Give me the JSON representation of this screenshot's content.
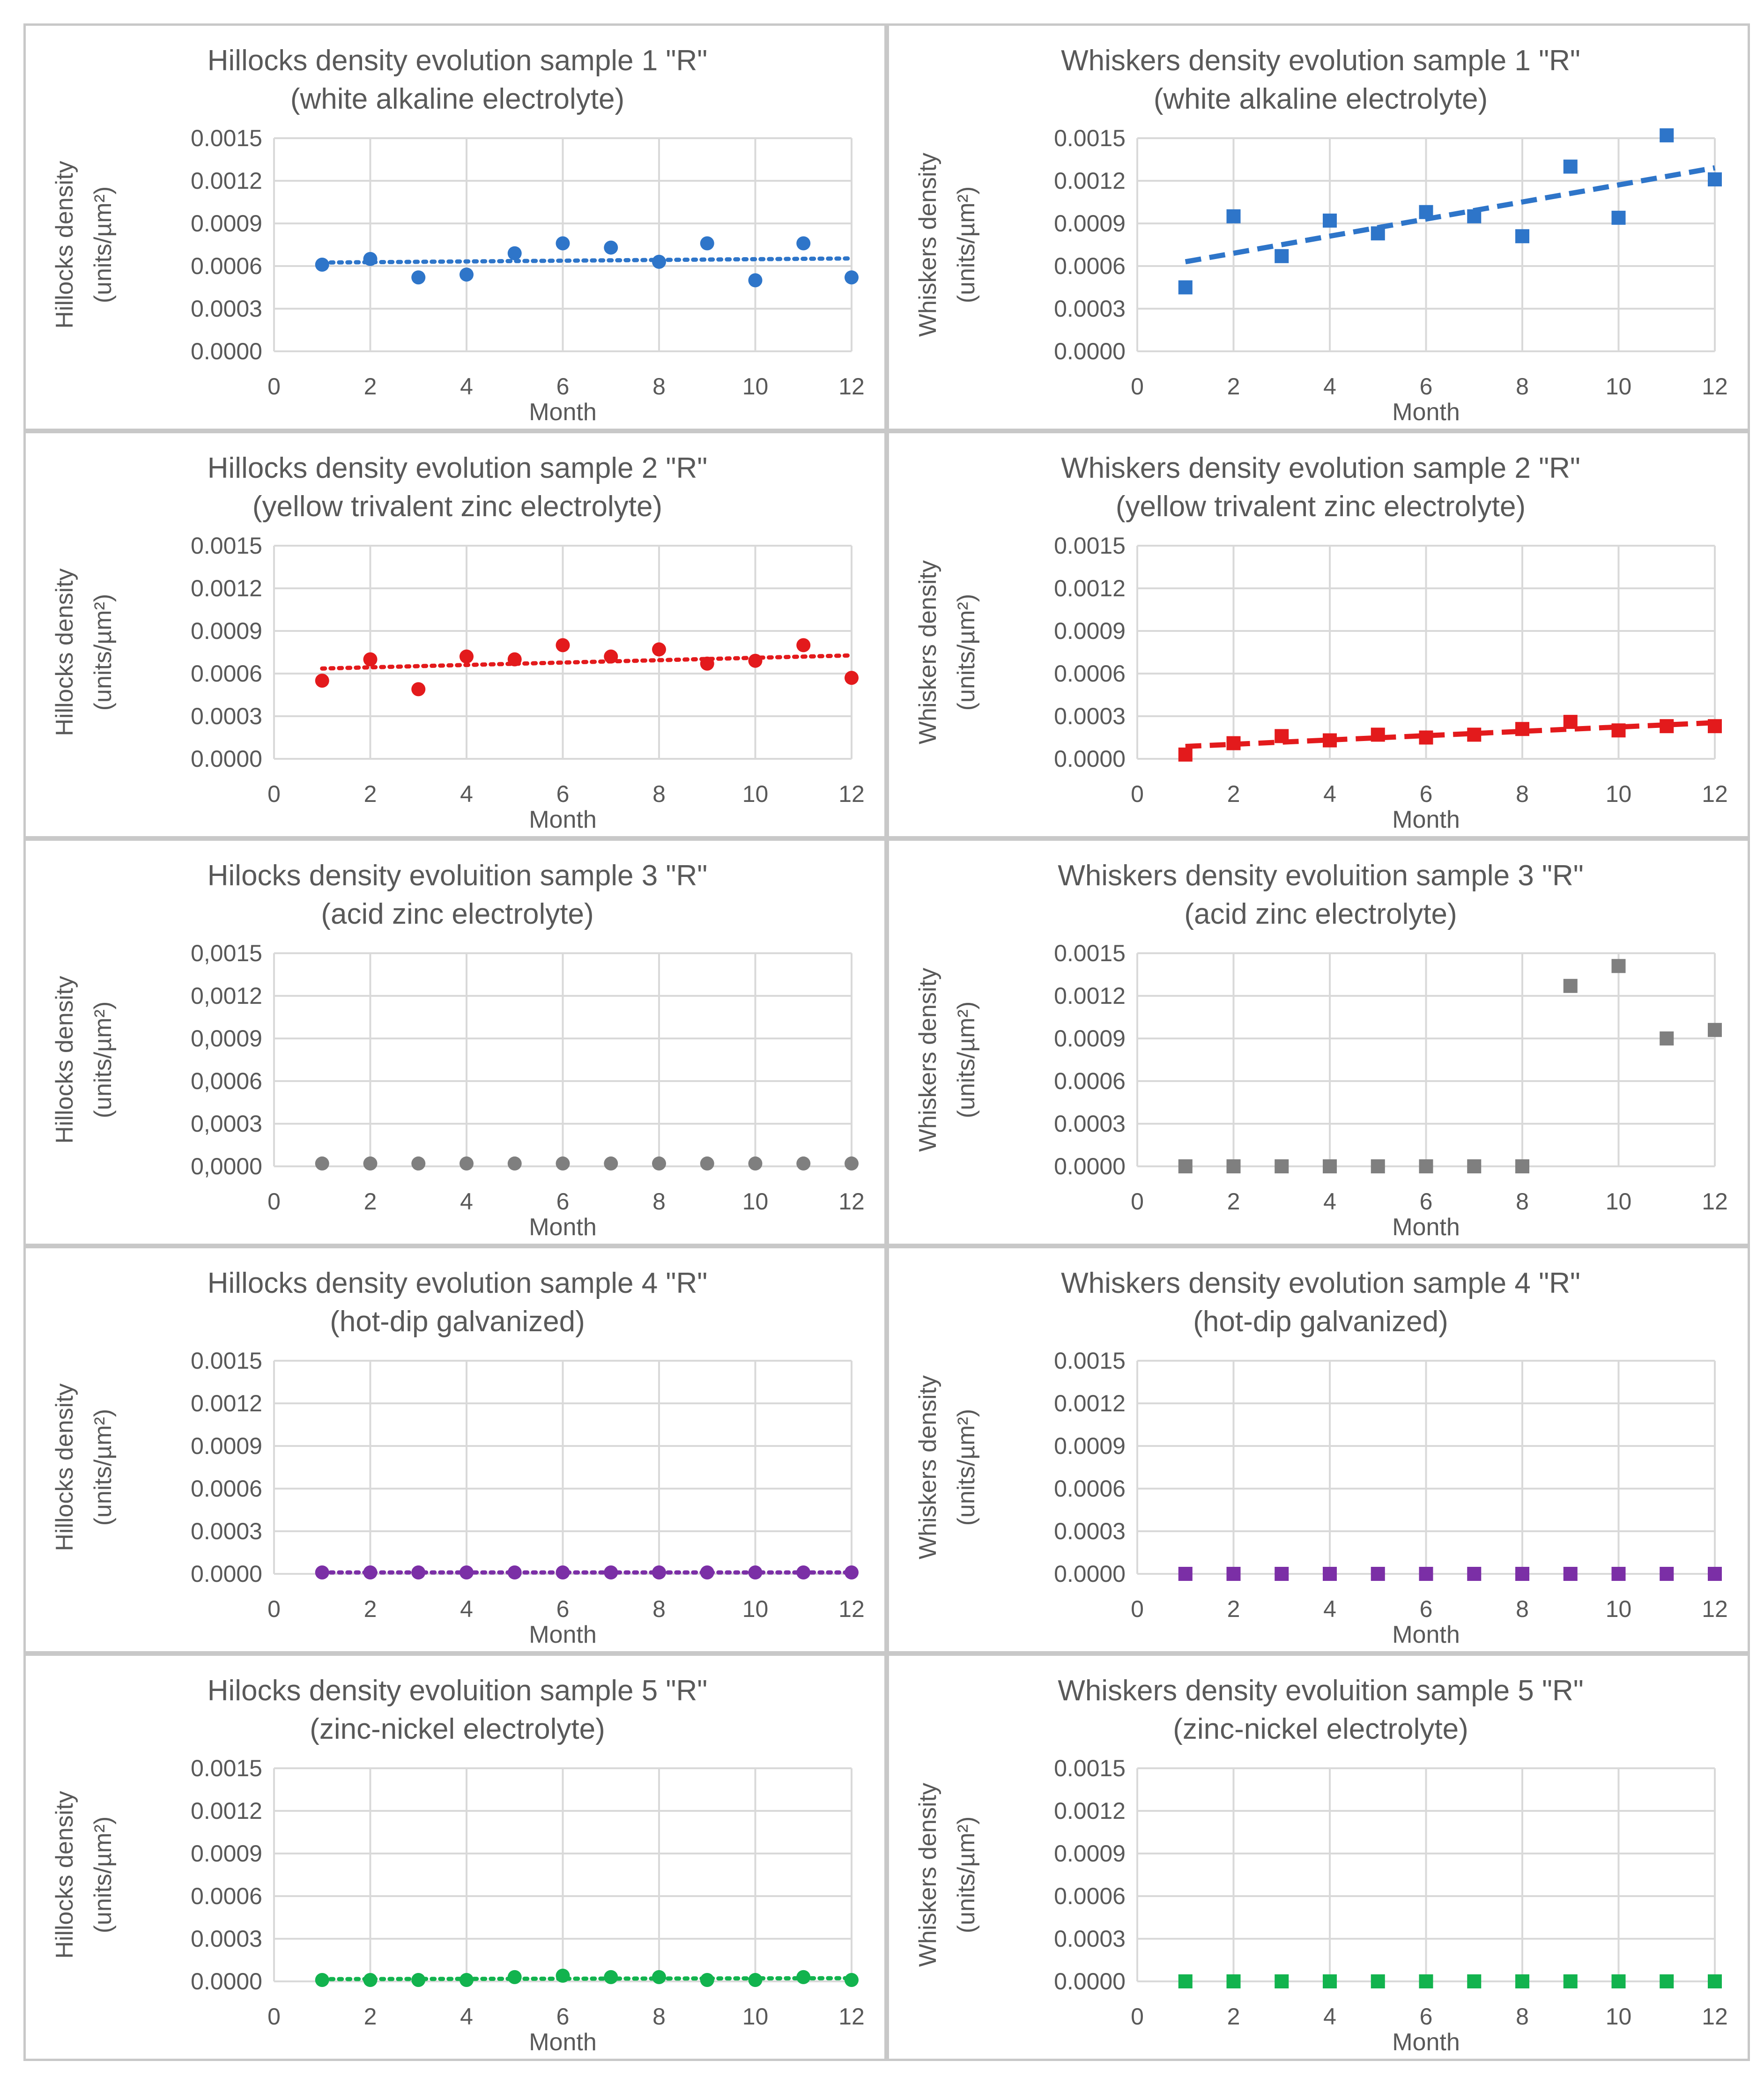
{
  "figure": {
    "unit_label": "(units/µm²)",
    "colors": {
      "sample1": "#2e75c9",
      "sample2": "#e31a1c",
      "sample3": "#7f7f7f",
      "sample4": "#7b2fa6",
      "sample5": "#12b34e",
      "grid": "#d9d9d9",
      "text": "#595959"
    }
  },
  "chart_data": [
    {
      "type": "scatter",
      "title_lines": [
        "Hillocks density evolution sample 1 \"R\"",
        "(white alkaline electrolyte)"
      ],
      "xlabel": "Month",
      "ylabel_lines": [
        "Hillocks density",
        "(units/µm²)"
      ],
      "xlim": [
        0,
        12
      ],
      "ylim": [
        0,
        0.0015
      ],
      "xticks": [
        "0",
        "2",
        "4",
        "6",
        "8",
        "10",
        "12"
      ],
      "yticks": [
        "0.0000",
        "0.0003",
        "0.0006",
        "0.0009",
        "0.0012",
        "0.0015"
      ],
      "marker": "circle",
      "trendline": "dotted",
      "color": "#2e75c9",
      "x": [
        1,
        2,
        3,
        4,
        5,
        6,
        7,
        8,
        9,
        10,
        11,
        12
      ],
      "y": [
        0.00061,
        0.00065,
        0.00052,
        0.00054,
        0.00069,
        0.00076,
        0.00073,
        0.00063,
        0.00076,
        0.0005,
        0.00076,
        0.00052
      ]
    },
    {
      "type": "scatter",
      "title_lines": [
        "Whiskers density evolution sample 1 \"R\"",
        "(white alkaline electrolyte)"
      ],
      "xlabel": "Month",
      "ylabel_lines": [
        "Whiskers density",
        "(units/µm²)"
      ],
      "xlim": [
        0,
        12
      ],
      "ylim": [
        0,
        0.0015
      ],
      "xticks": [
        "0",
        "2",
        "4",
        "6",
        "8",
        "10",
        "12"
      ],
      "yticks": [
        "0.0000",
        "0.0003",
        "0.0006",
        "0.0009",
        "0.0012",
        "0.0015"
      ],
      "marker": "square",
      "trendline": "dashed",
      "color": "#2e75c9",
      "x": [
        1,
        2,
        3,
        4,
        5,
        6,
        7,
        8,
        9,
        10,
        11,
        12
      ],
      "y": [
        0.00045,
        0.00095,
        0.00067,
        0.00092,
        0.00083,
        0.00098,
        0.00095,
        0.00081,
        0.0013,
        0.00094,
        0.00152,
        0.00121
      ]
    },
    {
      "type": "scatter",
      "title_lines": [
        "Hillocks density evolution sample 2 \"R\"",
        "(yellow trivalent zinc electrolyte)"
      ],
      "xlabel": "Month",
      "ylabel_lines": [
        "Hillocks density",
        "(units/µm²)"
      ],
      "xlim": [
        0,
        12
      ],
      "ylim": [
        0,
        0.0015
      ],
      "xticks": [
        "0",
        "2",
        "4",
        "6",
        "8",
        "10",
        "12"
      ],
      "yticks": [
        "0.0000",
        "0.0003",
        "0.0006",
        "0.0009",
        "0.0012",
        "0.0015"
      ],
      "marker": "circle",
      "trendline": "dotted",
      "color": "#e31a1c",
      "x": [
        1,
        2,
        3,
        4,
        5,
        6,
        7,
        8,
        9,
        10,
        11,
        12
      ],
      "y": [
        0.00055,
        0.0007,
        0.00049,
        0.00072,
        0.0007,
        0.0008,
        0.00072,
        0.00077,
        0.00067,
        0.00069,
        0.0008,
        0.00057
      ]
    },
    {
      "type": "scatter",
      "title_lines": [
        "Whiskers density evolution sample 2 \"R\"",
        "(yellow trivalent zinc electrolyte)"
      ],
      "xlabel": "Month",
      "ylabel_lines": [
        "Whiskers density",
        "(units/µm²)"
      ],
      "xlim": [
        0,
        12
      ],
      "ylim": [
        0,
        0.0015
      ],
      "xticks": [
        "0",
        "2",
        "4",
        "6",
        "8",
        "10",
        "12"
      ],
      "yticks": [
        "0.0000",
        "0.0003",
        "0.0006",
        "0.0009",
        "0.0012",
        "0.0015"
      ],
      "marker": "square",
      "trendline": "dashed",
      "color": "#e31a1c",
      "x": [
        1,
        2,
        3,
        4,
        5,
        6,
        7,
        8,
        9,
        10,
        11,
        12
      ],
      "y": [
        3e-05,
        0.00011,
        0.00016,
        0.00013,
        0.00017,
        0.00015,
        0.00017,
        0.00021,
        0.00026,
        0.0002,
        0.00023,
        0.00023
      ]
    },
    {
      "type": "scatter",
      "title_lines": [
        "Hilocks density evoluition sample 3 \"R\"",
        "(acid zinc electrolyte)"
      ],
      "xlabel": "Month",
      "ylabel_lines": [
        "Hillocks density",
        "(units/µm²)"
      ],
      "xlim": [
        0,
        12
      ],
      "ylim": [
        0,
        0.0015
      ],
      "xticks": [
        "0",
        "2",
        "4",
        "6",
        "8",
        "10",
        "12"
      ],
      "yticks": [
        "0,0000",
        "0,0003",
        "0,0006",
        "0,0009",
        "0,0012",
        "0,0015"
      ],
      "marker": "circle",
      "trendline": "none",
      "color": "#7f7f7f",
      "x": [
        1,
        2,
        3,
        4,
        5,
        6,
        7,
        8,
        9,
        10,
        11,
        12
      ],
      "y": [
        2e-05,
        2e-05,
        2e-05,
        2e-05,
        2e-05,
        2e-05,
        2e-05,
        2e-05,
        2e-05,
        2e-05,
        2e-05,
        2e-05
      ]
    },
    {
      "type": "scatter",
      "title_lines": [
        "Whiskers density evoluition sample 3 \"R\"",
        "(acid zinc electrolyte)"
      ],
      "xlabel": "Month",
      "ylabel_lines": [
        "Whiskers density",
        "(units/µm²)"
      ],
      "xlim": [
        0,
        12
      ],
      "ylim": [
        0,
        0.0015
      ],
      "xticks": [
        "0",
        "2",
        "4",
        "6",
        "8",
        "10",
        "12"
      ],
      "yticks": [
        "0.0000",
        "0.0003",
        "0.0006",
        "0.0009",
        "0.0012",
        "0.0015"
      ],
      "marker": "square",
      "trendline": "none",
      "color": "#7f7f7f",
      "x": [
        1,
        2,
        3,
        4,
        5,
        6,
        7,
        8,
        9,
        10,
        11,
        12
      ],
      "y": [
        0,
        0,
        0,
        0,
        0,
        0,
        0,
        0,
        0.00127,
        0.00141,
        0.0009,
        0.00096
      ]
    },
    {
      "type": "scatter",
      "title_lines": [
        "Hillocks density evolution sample 4 \"R\"",
        "(hot-dip galvanized)"
      ],
      "xlabel": "Month",
      "ylabel_lines": [
        "Hillocks density",
        "(units/µm²)"
      ],
      "xlim": [
        0,
        12
      ],
      "ylim": [
        0,
        0.0015
      ],
      "xticks": [
        "0",
        "2",
        "4",
        "6",
        "8",
        "10",
        "12"
      ],
      "yticks": [
        "0.0000",
        "0.0003",
        "0.0006",
        "0.0009",
        "0.0012",
        "0.0015"
      ],
      "marker": "circle",
      "trendline": "dotted",
      "color": "#7b2fa6",
      "x": [
        1,
        2,
        3,
        4,
        5,
        6,
        7,
        8,
        9,
        10,
        11,
        12
      ],
      "y": [
        1e-05,
        1e-05,
        1e-05,
        1e-05,
        1e-05,
        1e-05,
        1e-05,
        1e-05,
        1e-05,
        1e-05,
        1e-05,
        1e-05
      ]
    },
    {
      "type": "scatter",
      "title_lines": [
        "Whiskers density evolution sample 4 \"R\"",
        "(hot-dip galvanized)"
      ],
      "xlabel": "Month",
      "ylabel_lines": [
        "Whiskers density",
        "(units/µm²)"
      ],
      "xlim": [
        0,
        12
      ],
      "ylim": [
        0,
        0.0015
      ],
      "xticks": [
        "0",
        "2",
        "4",
        "6",
        "8",
        "10",
        "12"
      ],
      "yticks": [
        "0.0000",
        "0.0003",
        "0.0006",
        "0.0009",
        "0.0012",
        "0.0015"
      ],
      "marker": "square",
      "trendline": "none",
      "color": "#7b2fa6",
      "x": [
        1,
        2,
        3,
        4,
        5,
        6,
        7,
        8,
        9,
        10,
        11,
        12
      ],
      "y": [
        0,
        0,
        0,
        0,
        0,
        0,
        0,
        0,
        0,
        0,
        0,
        0
      ]
    },
    {
      "type": "scatter",
      "title_lines": [
        "Hilocks density evoluition sample 5 \"R\"",
        "(zinc-nickel electrolyte)"
      ],
      "xlabel": "Month",
      "ylabel_lines": [
        "Hillocks density",
        "(units/µm²)"
      ],
      "xlim": [
        0,
        12
      ],
      "ylim": [
        0,
        0.0015
      ],
      "xticks": [
        "0",
        "2",
        "4",
        "6",
        "8",
        "10",
        "12"
      ],
      "yticks": [
        "0.0000",
        "0.0003",
        "0.0006",
        "0.0009",
        "0.0012",
        "0.0015"
      ],
      "marker": "circle",
      "trendline": "dotted",
      "color": "#12b34e",
      "x": [
        1,
        2,
        3,
        4,
        5,
        6,
        7,
        8,
        9,
        10,
        11,
        12
      ],
      "y": [
        1e-05,
        1e-05,
        1e-05,
        1e-05,
        3e-05,
        4e-05,
        3e-05,
        3e-05,
        1e-05,
        1e-05,
        3e-05,
        1e-05
      ]
    },
    {
      "type": "scatter",
      "title_lines": [
        "Whiskers density evoluition sample 5 \"R\"",
        "(zinc-nickel electrolyte)"
      ],
      "xlabel": "Month",
      "ylabel_lines": [
        "Whiskers density",
        "(units/µm²)"
      ],
      "xlim": [
        0,
        12
      ],
      "ylim": [
        0,
        0.0015
      ],
      "xticks": [
        "0",
        "2",
        "4",
        "6",
        "8",
        "10",
        "12"
      ],
      "yticks": [
        "0.0000",
        "0.0003",
        "0.0006",
        "0.0009",
        "0.0012",
        "0.0015"
      ],
      "marker": "square",
      "trendline": "none",
      "color": "#12b34e",
      "x": [
        1,
        2,
        3,
        4,
        5,
        6,
        7,
        8,
        9,
        10,
        11,
        12
      ],
      "y": [
        0,
        0,
        0,
        0,
        0,
        0,
        0,
        0,
        0,
        0,
        0,
        0
      ]
    }
  ]
}
